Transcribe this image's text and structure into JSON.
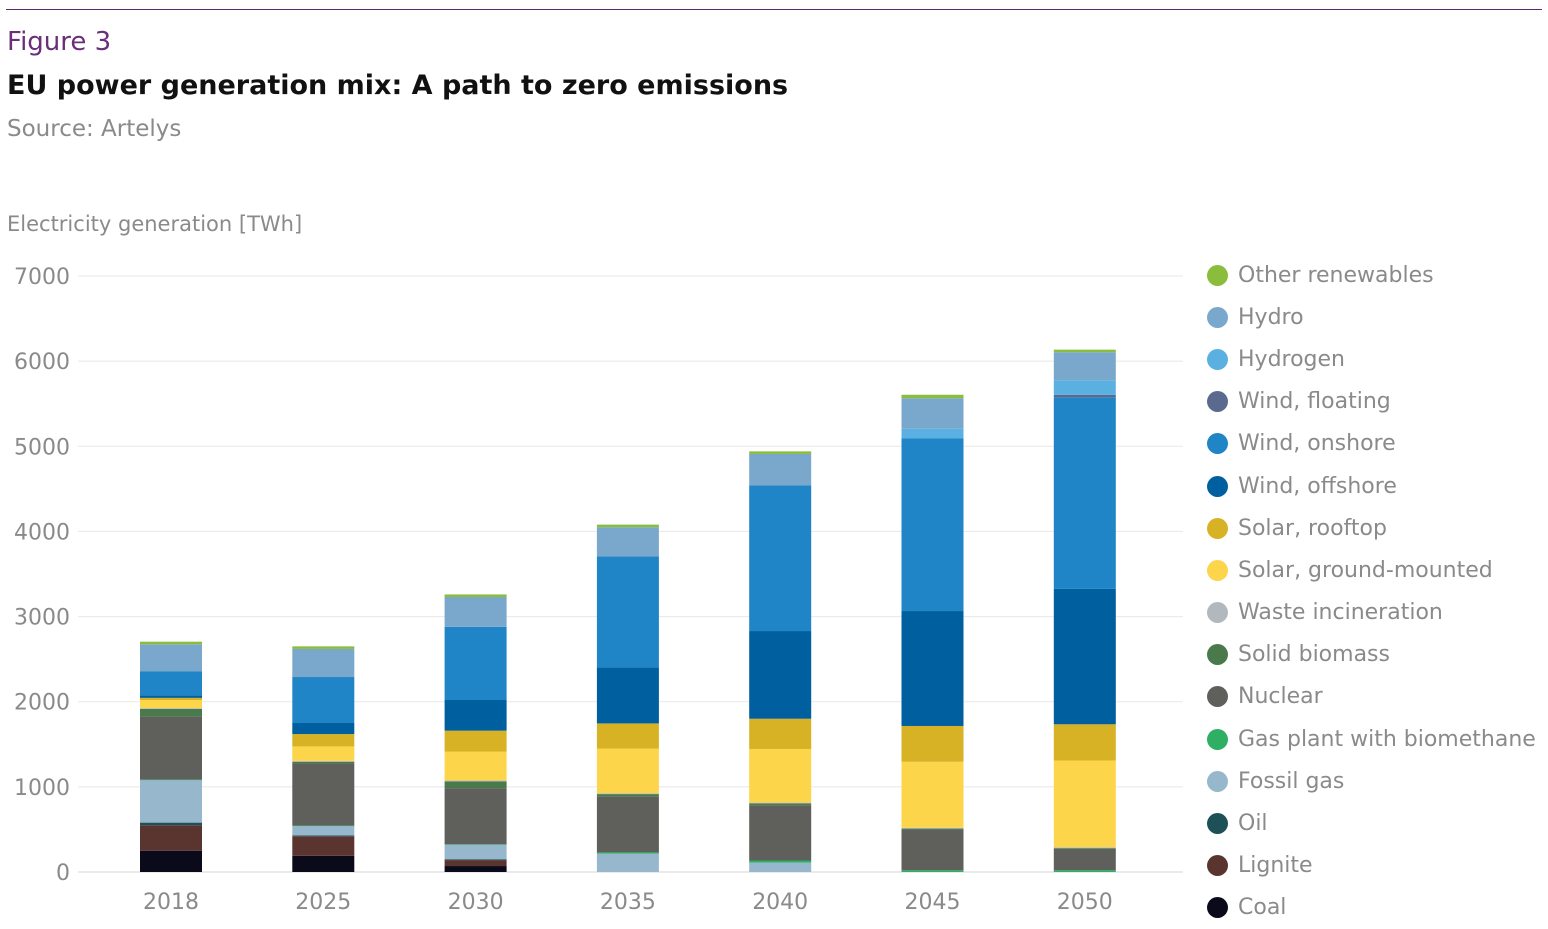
{
  "header": {
    "figure_label": "Figure 3",
    "title": "EU power generation mix: A path to zero emissions",
    "source": "Source: Artelys"
  },
  "chart_data": {
    "type": "bar",
    "stacked": true,
    "ylabel": "Electricity generation [TWh]",
    "xlabel": "",
    "ylim": [
      0,
      7000
    ],
    "yticks": [
      0,
      1000,
      2000,
      3000,
      4000,
      5000,
      6000,
      7000
    ],
    "grid": true,
    "legend_position": "right",
    "categories": [
      "2018",
      "2025",
      "2030",
      "2035",
      "2040",
      "2045",
      "2050"
    ],
    "series": [
      {
        "name": "Coal",
        "color": "#0a0a1a",
        "values": [
          250,
          190,
          70,
          0,
          0,
          0,
          0
        ]
      },
      {
        "name": "Lignite",
        "color": "#5a3530",
        "values": [
          300,
          230,
          70,
          0,
          0,
          0,
          0
        ]
      },
      {
        "name": "Oil",
        "color": "#1e5058",
        "values": [
          30,
          10,
          10,
          0,
          0,
          0,
          0
        ]
      },
      {
        "name": "Fossil gas",
        "color": "#97b8cc",
        "values": [
          500,
          110,
          170,
          215,
          110,
          0,
          0
        ]
      },
      {
        "name": "Gas plant with biomethane",
        "color": "#2faf64",
        "values": [
          5,
          5,
          5,
          15,
          25,
          20,
          20
        ]
      },
      {
        "name": "Nuclear",
        "color": "#5f605c",
        "values": [
          740,
          730,
          660,
          655,
          650,
          480,
          250
        ]
      },
      {
        "name": "Solid biomass",
        "color": "#4a7a4c",
        "values": [
          90,
          20,
          80,
          30,
          20,
          10,
          10
        ]
      },
      {
        "name": "Waste incineration",
        "color": "#b2b9be",
        "values": [
          10,
          10,
          10,
          10,
          10,
          10,
          10
        ]
      },
      {
        "name": "Solar, ground-mounted",
        "color": "#fdd54a",
        "values": [
          95,
          170,
          340,
          525,
          630,
          775,
          1020
        ]
      },
      {
        "name": "Solar, rooftop",
        "color": "#d6b224",
        "values": [
          25,
          145,
          245,
          295,
          355,
          420,
          425
        ]
      },
      {
        "name": "Wind, offshore",
        "color": "#005f9e",
        "values": [
          30,
          130,
          360,
          660,
          1030,
          1350,
          1590
        ]
      },
      {
        "name": "Wind, onshore",
        "color": "#1f85c6",
        "values": [
          280,
          540,
          860,
          1300,
          1710,
          2030,
          2250
        ]
      },
      {
        "name": "Wind, floating",
        "color": "#5a6a8f",
        "values": [
          0,
          0,
          0,
          0,
          0,
          0,
          30
        ]
      },
      {
        "name": "Hydrogen",
        "color": "#5bb0e2",
        "values": [
          0,
          0,
          0,
          0,
          0,
          110,
          170
        ]
      },
      {
        "name": "Hydro",
        "color": "#7aa8cc",
        "values": [
          320,
          330,
          350,
          345,
          370,
          360,
          330
        ]
      },
      {
        "name": "Other renewables",
        "color": "#8bbd3c",
        "values": [
          30,
          30,
          30,
          30,
          30,
          40,
          30
        ]
      }
    ]
  }
}
